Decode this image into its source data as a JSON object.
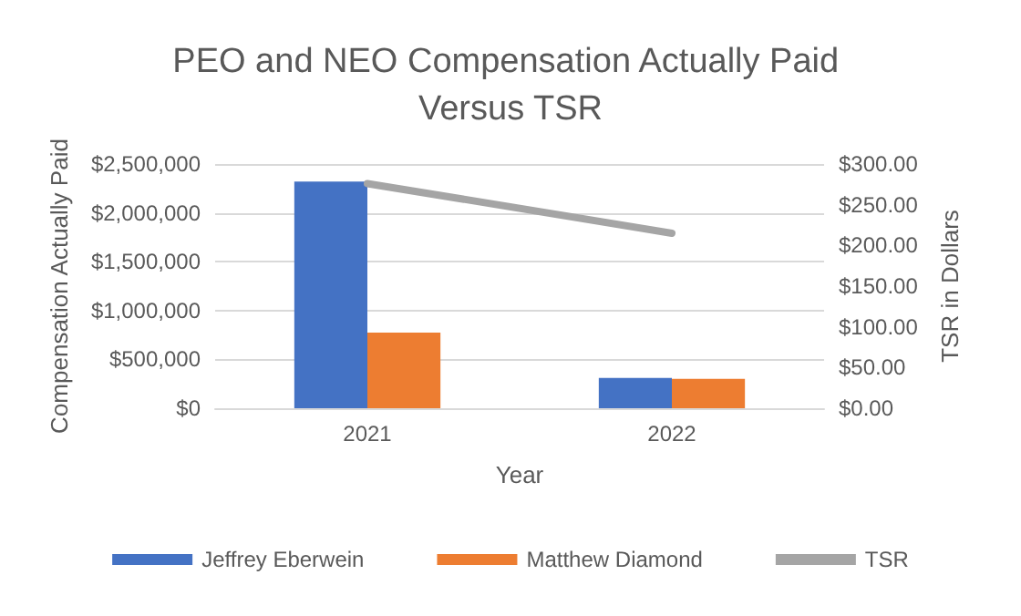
{
  "chart_data": {
    "type": "bar",
    "title": "PEO and NEO Compensation Actually Paid Versus TSR",
    "xlabel": "Year",
    "ylabel": "Compensation Actually Paid",
    "y2label": "TSR in Dollars",
    "categories": [
      "2021",
      "2022"
    ],
    "series": [
      {
        "name": "Jeffrey Eberwein",
        "color": "#4472c4",
        "values": [
          2320000,
          310000
        ]
      },
      {
        "name": "Matthew Diamond",
        "color": "#ed7d31",
        "values": [
          775000,
          300000
        ]
      },
      {
        "name": "TSR",
        "type": "line",
        "axis": "y2",
        "color": "#a5a5a5",
        "values": [
          276,
          215
        ]
      }
    ],
    "ylim": [
      0,
      2500000
    ],
    "yticks": [
      {
        "value": 0,
        "label": "$0"
      },
      {
        "value": 500000,
        "label": "$500,000"
      },
      {
        "value": 1000000,
        "label": "$1,000,000"
      },
      {
        "value": 1500000,
        "label": "$1,500,000"
      },
      {
        "value": 2000000,
        "label": "$2,000,000"
      },
      {
        "value": 2500000,
        "label": "$2,500,000"
      }
    ],
    "y2lim": [
      0,
      300
    ],
    "y2ticks": [
      {
        "value": 0,
        "label": "$0.00"
      },
      {
        "value": 50,
        "label": "$50.00"
      },
      {
        "value": 100,
        "label": "$100.00"
      },
      {
        "value": 150,
        "label": "$150.00"
      },
      {
        "value": 200,
        "label": "$200.00"
      },
      {
        "value": 250,
        "label": "$250.00"
      },
      {
        "value": 300,
        "label": "$300.00"
      }
    ],
    "grid": "y",
    "legend": "bottom",
    "marker": "none"
  }
}
